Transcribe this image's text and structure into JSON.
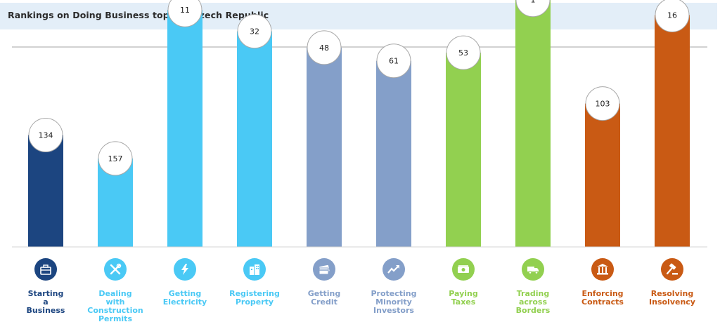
{
  "header": {
    "title": "Rankings on Doing Business topics - Czech Republic"
  },
  "chart_data": {
    "type": "bar",
    "title": "Rankings on Doing Business topics - Czech Republic",
    "categories": [
      "Starting a Business",
      "Dealing with Construction Permits",
      "Getting Electricity",
      "Registering Property",
      "Getting Credit",
      "Protecting Minority Investors",
      "Paying Taxes",
      "Trading across Borders",
      "Enforcing Contracts",
      "Resolving Insolvency"
    ],
    "category_label_lines": [
      "Starting\na\nBusiness",
      "Dealing\nwith\nConstruction\nPermits",
      "Getting\nElectricity",
      "Registering\nProperty",
      "Getting\nCredit",
      "Protecting\nMinority\nInvestors",
      "Paying\nTaxes",
      "Trading\nacross\nBorders",
      "Enforcing\nContracts",
      "Resolving\nInsolvency"
    ],
    "values": [
      134,
      157,
      11,
      32,
      48,
      61,
      53,
      1,
      103,
      16
    ],
    "value_scale": "rank (lower is better; taller bar = better rank)",
    "ylim": [
      0,
      190
    ],
    "colors": [
      "#1c4580",
      "#4ac9f5",
      "#4ac9f5",
      "#4ac9f5",
      "#849fc9",
      "#849fc9",
      "#92d050",
      "#92d050",
      "#c95a14",
      "#c95a14"
    ],
    "icons": [
      "briefcase-icon",
      "tools-icon",
      "lightning-icon",
      "buildings-icon",
      "credit-card-icon",
      "trend-up-icon",
      "money-icon",
      "truck-icon",
      "courthouse-icon",
      "gavel-icon"
    ],
    "grid": false,
    "legend": "none"
  }
}
